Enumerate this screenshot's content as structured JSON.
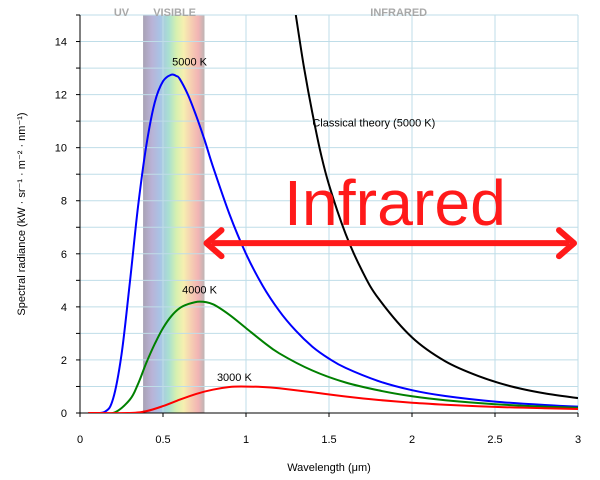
{
  "chart_data": {
    "type": "line",
    "xlabel": "Wavelength (μm)",
    "ylabel": "Spectral radiance (kW · sr⁻¹ · m⁻² · nm⁻¹)",
    "xlim": [
      0,
      3
    ],
    "ylim": [
      0,
      15
    ],
    "x_ticks": [
      "0",
      "0.5",
      "1",
      "1.5",
      "2",
      "2.5",
      "3"
    ],
    "y_ticks": [
      "0",
      "2",
      "4",
      "6",
      "8",
      "10",
      "12",
      "14"
    ],
    "grid": true,
    "region_labels": [
      "UV",
      "VISIBLE",
      "INFRARED"
    ],
    "visible_band": [
      0.38,
      0.75
    ],
    "annotation": {
      "text": "Infrared",
      "arrow_from": 0.75,
      "arrow_to": 3.0,
      "arrow_y": 6.4,
      "color": "#ff1a1a"
    },
    "series": [
      {
        "name": "5000 K",
        "color": "#0000ff",
        "x": [
          0.05,
          0.15,
          0.2,
          0.25,
          0.3,
          0.35,
          0.4,
          0.45,
          0.5,
          0.55,
          0.58,
          0.6,
          0.65,
          0.7,
          0.75,
          0.8,
          0.9,
          1.0,
          1.1,
          1.2,
          1.3,
          1.4,
          1.5,
          1.6,
          1.8,
          2.0,
          2.2,
          2.5,
          2.8,
          3.0
        ],
        "y": [
          0.0,
          0.05,
          0.55,
          2.2,
          4.9,
          7.8,
          10.1,
          11.7,
          12.5,
          12.75,
          12.7,
          12.6,
          12.0,
          11.2,
          10.3,
          9.3,
          7.5,
          6.0,
          4.8,
          3.85,
          3.1,
          2.5,
          2.05,
          1.7,
          1.2,
          0.86,
          0.64,
          0.43,
          0.3,
          0.24
        ]
      },
      {
        "name": "4000 K",
        "color": "#008000",
        "x": [
          0.05,
          0.2,
          0.3,
          0.35,
          0.4,
          0.45,
          0.5,
          0.55,
          0.6,
          0.65,
          0.72,
          0.8,
          0.9,
          1.0,
          1.1,
          1.2,
          1.4,
          1.6,
          1.8,
          2.0,
          2.2,
          2.5,
          2.8,
          3.0
        ],
        "y": [
          0.0,
          0.0,
          0.5,
          1.1,
          1.9,
          2.6,
          3.2,
          3.65,
          3.95,
          4.1,
          4.2,
          4.1,
          3.7,
          3.2,
          2.7,
          2.25,
          1.6,
          1.15,
          0.85,
          0.63,
          0.48,
          0.33,
          0.24,
          0.2
        ]
      },
      {
        "name": "3000 K",
        "color": "#ff0000",
        "x": [
          0.05,
          0.3,
          0.4,
          0.5,
          0.6,
          0.7,
          0.8,
          0.9,
          0.97,
          1.1,
          1.2,
          1.4,
          1.6,
          1.8,
          2.0,
          2.2,
          2.5,
          2.8,
          3.0
        ],
        "y": [
          0.0,
          0.0,
          0.07,
          0.26,
          0.5,
          0.72,
          0.88,
          0.98,
          1.0,
          0.98,
          0.93,
          0.78,
          0.62,
          0.49,
          0.39,
          0.31,
          0.23,
          0.18,
          0.15
        ]
      },
      {
        "name": "Classical theory (5000 K)",
        "color": "#000000",
        "x": [
          1.3,
          1.35,
          1.4,
          1.45,
          1.5,
          1.6,
          1.7,
          1.8,
          2.0,
          2.2,
          2.4,
          2.6,
          2.8,
          3.0
        ],
        "y": [
          15.0,
          13.0,
          11.3,
          9.8,
          8.6,
          6.75,
          5.35,
          4.3,
          2.85,
          1.95,
          1.39,
          1.0,
          0.74,
          0.56
        ]
      }
    ],
    "series_labels": [
      {
        "text": "5000 K",
        "x": 0.66,
        "y": 13.1
      },
      {
        "text": "4000 K",
        "x": 0.72,
        "y": 4.5
      },
      {
        "text": "3000 K",
        "x": 0.93,
        "y": 1.2
      },
      {
        "text": "Classical theory (5000 K)",
        "x": 1.77,
        "y": 10.8
      }
    ]
  }
}
